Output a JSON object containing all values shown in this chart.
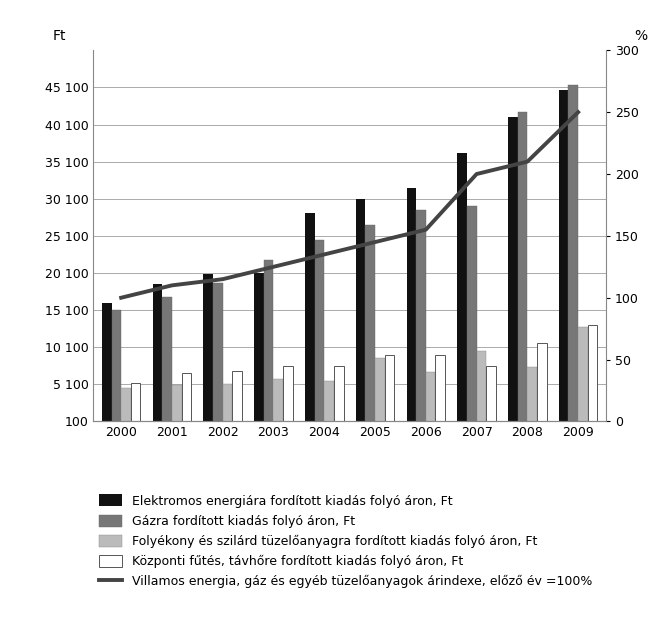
{
  "years": [
    2000,
    2001,
    2002,
    2003,
    2004,
    2005,
    2006,
    2007,
    2008,
    2009
  ],
  "elektromos": [
    16100,
    18600,
    19900,
    20100,
    28200,
    30100,
    31600,
    36200,
    41100,
    44800
  ],
  "gaz": [
    15100,
    16900,
    18800,
    21900,
    24600,
    26600,
    28600,
    29100,
    41800,
    45400
  ],
  "folyekony": [
    4600,
    5000,
    5200,
    5800,
    5600,
    8700,
    6700,
    9600,
    7400,
    12800
  ],
  "kozponti": [
    5300,
    6600,
    6900,
    7600,
    7600,
    9000,
    9000,
    7600,
    10700,
    13100
  ],
  "arindex": [
    100,
    110,
    115,
    125,
    135,
    145,
    155,
    200,
    210,
    250
  ],
  "ylim_left": [
    100,
    50100
  ],
  "yticks_left": [
    100,
    5100,
    10100,
    15100,
    20100,
    25100,
    30100,
    35100,
    40100,
    45100
  ],
  "ytick_labels_left": [
    "100",
    "5 100",
    "10 100",
    "15 100",
    "20 100",
    "25 100",
    "30 100",
    "35 100",
    "40 100",
    "45 100"
  ],
  "ylim_right": [
    0,
    300
  ],
  "yticks_right": [
    0,
    50,
    100,
    150,
    200,
    250,
    300
  ],
  "label_ft": "Ft",
  "label_pct": "%",
  "bar_width": 0.19,
  "color_elektromos": "#111111",
  "color_gaz": "#777777",
  "color_folyekony": "#bbbbbb",
  "color_kozponti": "#ffffff",
  "color_line": "#444444",
  "color_grid": "#aaaaaa",
  "legend_labels": [
    "Elektromos energiára fordított kiadás folyó áron, Ft",
    "Gázra fordított kiadás folyó áron, Ft",
    "Folyékony és szilárd tüzelőanyagra fordított kiadás folyó áron, Ft",
    "Központi fűtés, távhőre fordított kiadás folyó áron, Ft",
    "Villamos energia, gáz és egyéb tüzelőanyagok árindexe, előző év =100%"
  ],
  "background_color": "#ffffff"
}
